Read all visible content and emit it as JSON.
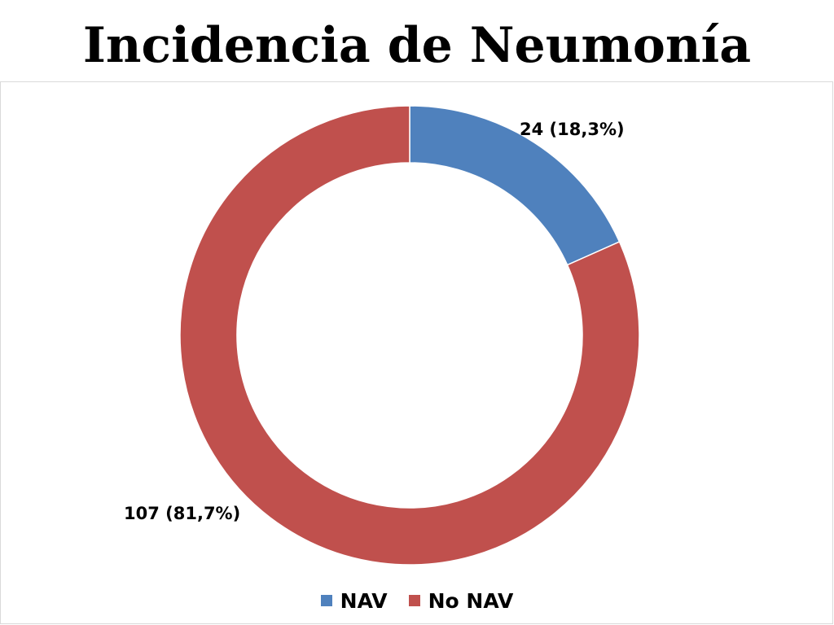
{
  "slide_title": "Incidencia de Neumonía",
  "chart_data": {
    "type": "pie",
    "title": "",
    "legend_position": "bottom",
    "slices": [
      {
        "name": "NAV",
        "value": 24,
        "percent": 18.3,
        "label": "24 (18,3%)",
        "color": "#4f81bd"
      },
      {
        "name": "No NAV",
        "value": 107,
        "percent": 81.7,
        "label": "107 (81,7%)",
        "color": "#c0504d"
      }
    ]
  }
}
